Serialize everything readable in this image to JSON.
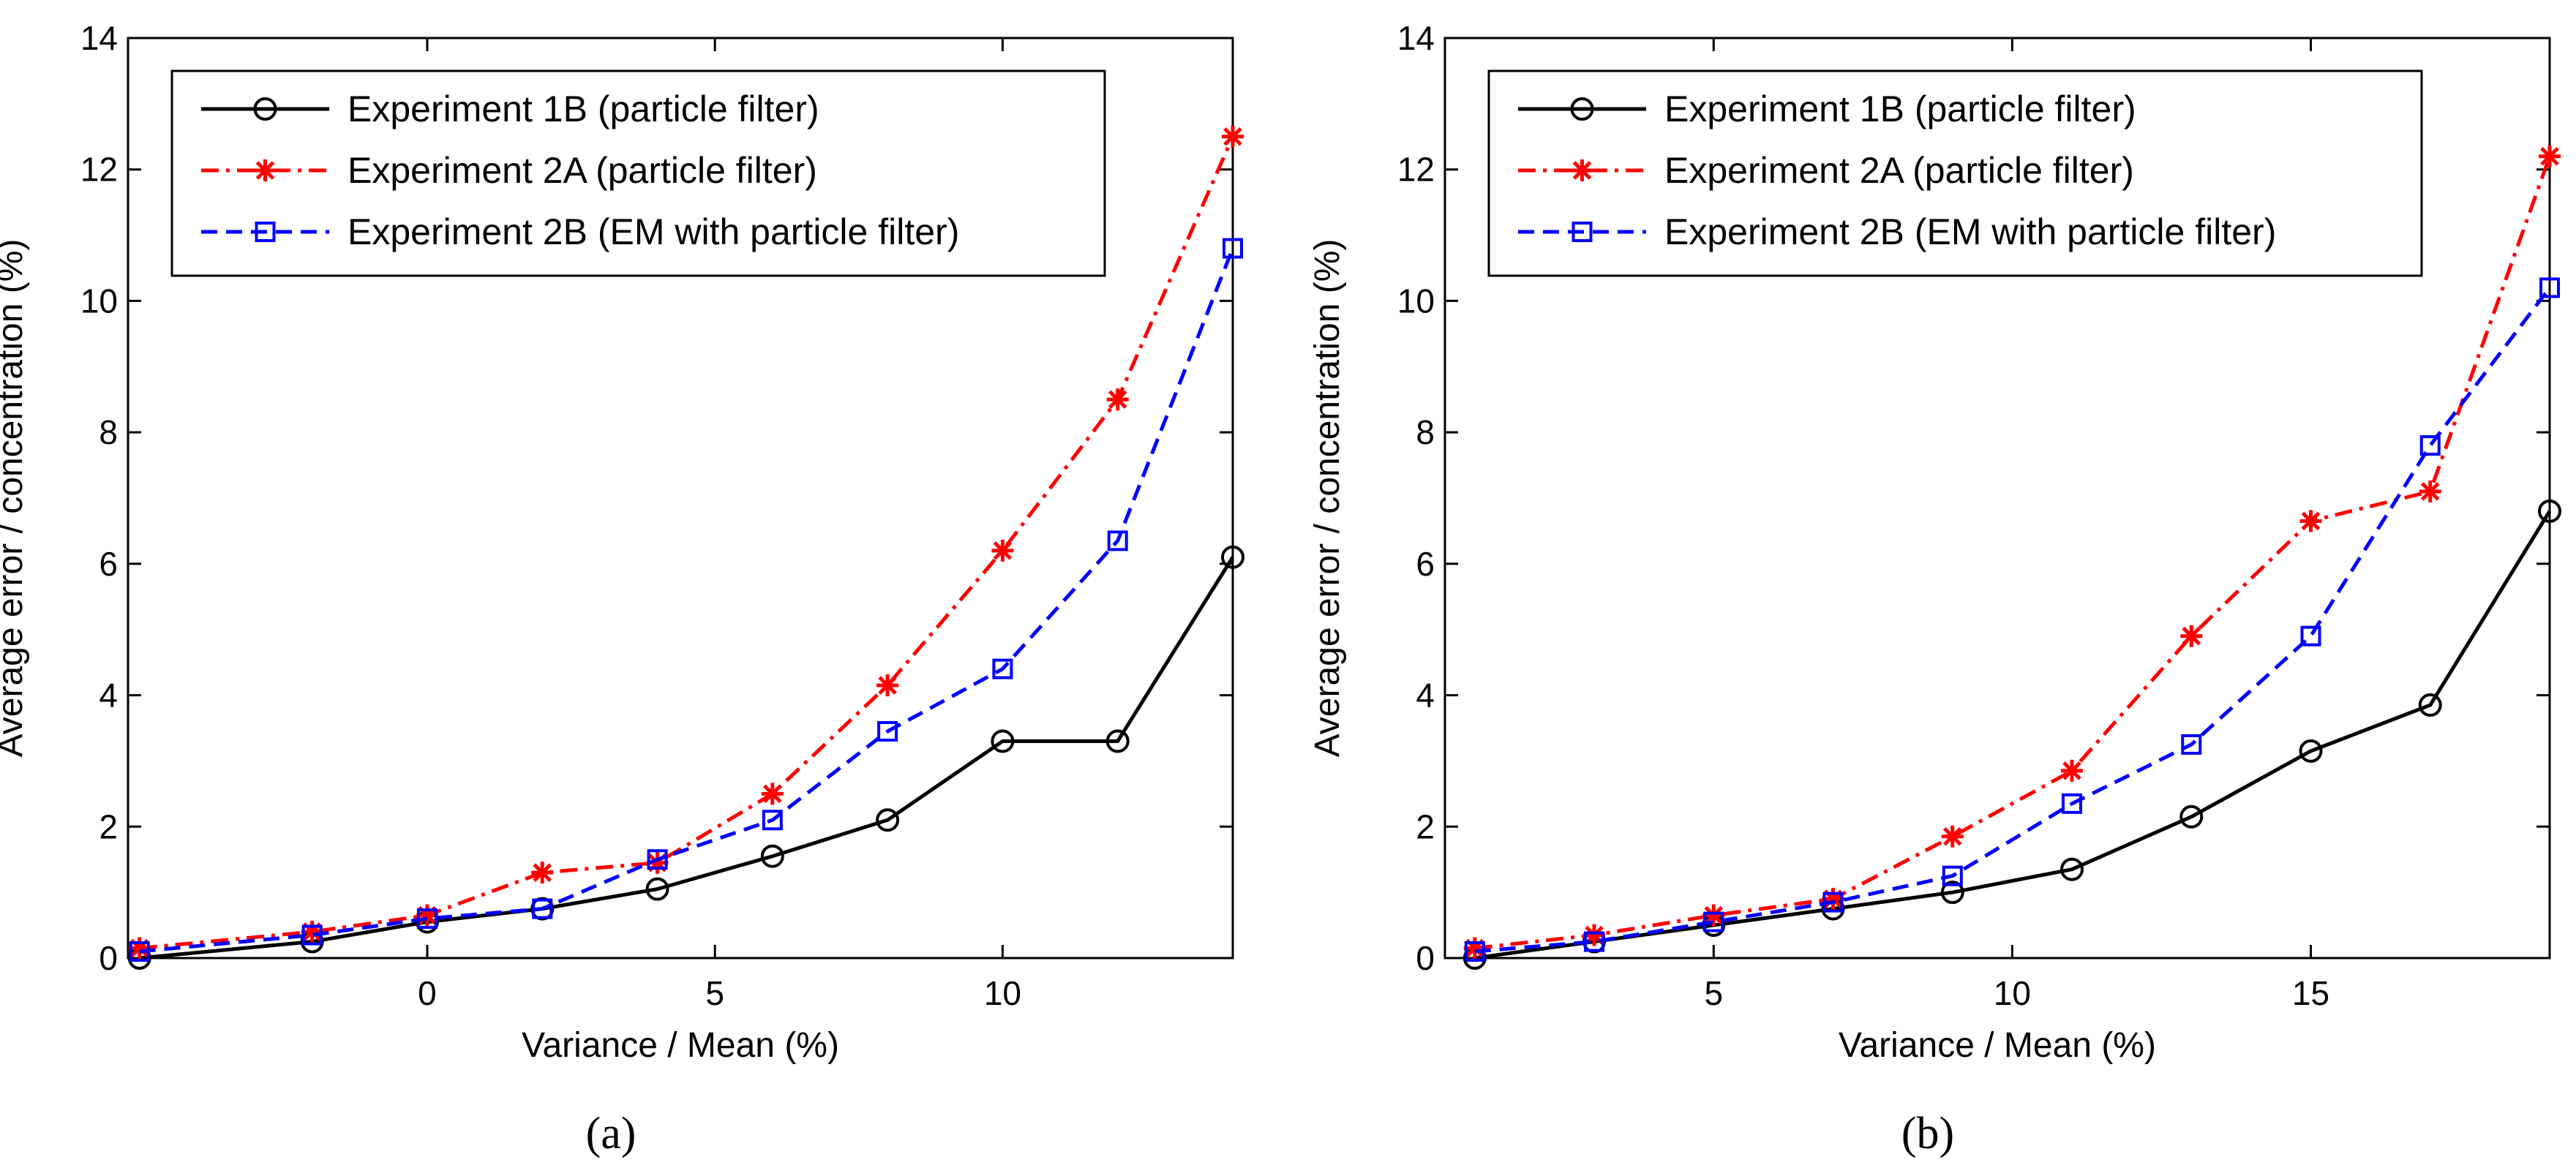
{
  "chart_data": [
    {
      "type": "line",
      "panel_label": "a",
      "xlabel": "Variance / Mean (%)",
      "ylabel": "Average error / concentration (%)",
      "xlim": [
        -5.2,
        14
      ],
      "ylim": [
        0,
        14
      ],
      "xticks": [
        0,
        5,
        10
      ],
      "yticks": [
        0,
        2,
        4,
        6,
        8,
        10,
        12,
        14
      ],
      "grid": false,
      "legend_position": "top-left",
      "series": [
        {
          "name": "Experiment 1B (particle filter)",
          "color": "#000000",
          "linestyle": "solid",
          "marker": "circle",
          "x": [
            -5,
            -2,
            0,
            2,
            4,
            6,
            8,
            10,
            12,
            14
          ],
          "y": [
            0.0,
            0.25,
            0.55,
            0.75,
            1.05,
            1.55,
            2.1,
            3.3,
            3.3,
            6.1
          ]
        },
        {
          "name": "Experiment 2A (particle filter)",
          "color": "#ff0000",
          "linestyle": "dashdot",
          "marker": "star",
          "x": [
            -5,
            -2,
            0,
            2,
            4,
            6,
            8,
            10,
            12,
            14
          ],
          "y": [
            0.15,
            0.4,
            0.65,
            1.3,
            1.45,
            2.5,
            4.15,
            6.2,
            8.5,
            12.5
          ]
        },
        {
          "name": "Experiment 2B (EM with particle filter)",
          "color": "#0000ff",
          "linestyle": "dashed",
          "marker": "square",
          "x": [
            -5,
            -2,
            0,
            2,
            4,
            6,
            8,
            10,
            12,
            14
          ],
          "y": [
            0.1,
            0.35,
            0.6,
            0.75,
            1.5,
            2.1,
            3.45,
            4.4,
            6.35,
            10.8
          ]
        }
      ]
    },
    {
      "type": "line",
      "panel_label": "b",
      "xlabel": "Variance / Mean (%)",
      "ylabel": "Average error / concentration (%)",
      "xlim": [
        0.5,
        19
      ],
      "ylim": [
        0,
        14
      ],
      "xticks": [
        5,
        10,
        15
      ],
      "yticks": [
        0,
        2,
        4,
        6,
        8,
        10,
        12,
        14
      ],
      "grid": false,
      "legend_position": "top-left",
      "series": [
        {
          "name": "Experiment 1B (particle filter)",
          "color": "#000000",
          "linestyle": "solid",
          "marker": "circle",
          "x": [
            1,
            3,
            5,
            7,
            9,
            11,
            13,
            15,
            17,
            19
          ],
          "y": [
            0.0,
            0.25,
            0.5,
            0.75,
            1.0,
            1.35,
            2.15,
            3.15,
            3.85,
            6.8
          ]
        },
        {
          "name": "Experiment 2A (particle filter)",
          "color": "#ff0000",
          "linestyle": "dashdot",
          "marker": "star",
          "x": [
            1,
            3,
            5,
            7,
            9,
            11,
            13,
            15,
            17,
            19
          ],
          "y": [
            0.15,
            0.35,
            0.65,
            0.9,
            1.85,
            2.85,
            4.9,
            6.65,
            7.1,
            12.2
          ]
        },
        {
          "name": "Experiment 2B (EM with particle filter)",
          "color": "#0000ff",
          "linestyle": "dashed",
          "marker": "square",
          "x": [
            1,
            3,
            5,
            7,
            9,
            11,
            13,
            15,
            17,
            19
          ],
          "y": [
            0.1,
            0.25,
            0.55,
            0.85,
            1.25,
            2.35,
            3.25,
            4.9,
            7.8,
            10.2
          ]
        }
      ]
    }
  ],
  "captions": [
    "(a)",
    "(b)"
  ]
}
